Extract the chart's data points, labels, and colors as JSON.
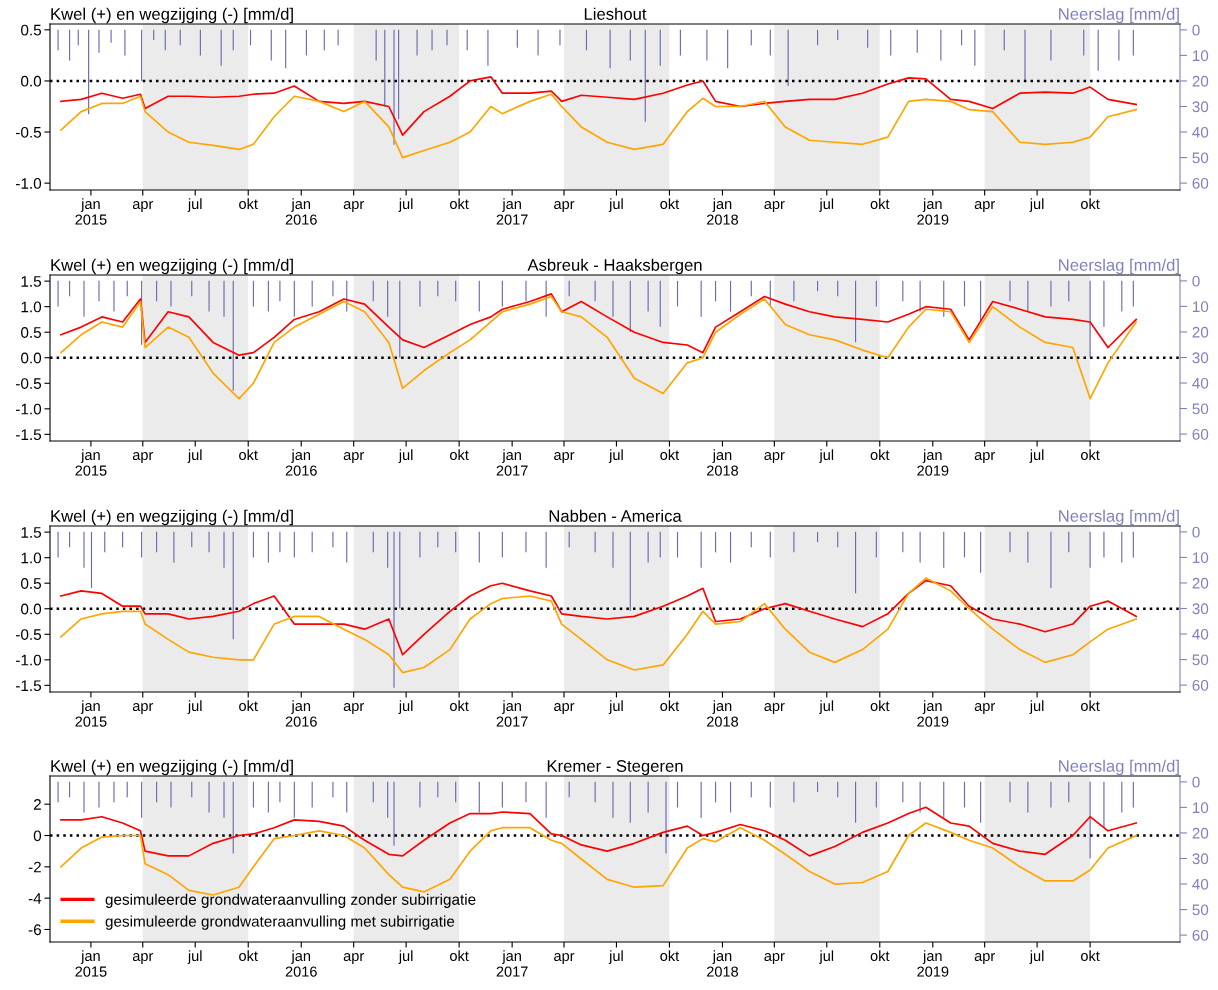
{
  "chart_data": [
    {
      "type": "line",
      "title": "Lieshout",
      "ylabel": "Kwel (+) en wegzijging (-) [mm/d]",
      "y2label": "Neerslag [mm/d]",
      "xlim": [
        "2014-10-22",
        "2020-03-05"
      ],
      "ylim": [
        -1.067,
        0.557
      ],
      "yticks": [
        {
          "value": -1.0,
          "label": "-1.0"
        },
        {
          "value": -0.5,
          "label": "-0.5"
        },
        {
          "value": 0.0,
          "label": "0.0"
        },
        {
          "value": 0.5,
          "label": "0.5"
        }
      ],
      "y2lim": [
        62.7,
        -2.3
      ],
      "y2ticks": [
        0,
        10,
        20,
        30,
        40,
        50,
        60
      ],
      "xticks": [
        {
          "value": "2015-01-01",
          "label": "jan\n2015"
        },
        {
          "value": "2015-04-01",
          "label": "apr"
        },
        {
          "value": "2015-07-01",
          "label": "jul"
        },
        {
          "value": "2015-10-01",
          "label": "okt"
        },
        {
          "value": "2016-01-01",
          "label": "jan\n2016"
        },
        {
          "value": "2016-04-01",
          "label": "apr"
        },
        {
          "value": "2016-07-01",
          "label": "jul"
        },
        {
          "value": "2016-10-01",
          "label": "okt"
        },
        {
          "value": "2017-01-01",
          "label": "jan\n2017"
        },
        {
          "value": "2017-04-01",
          "label": "apr"
        },
        {
          "value": "2017-07-01",
          "label": "jul"
        },
        {
          "value": "2017-10-01",
          "label": "okt"
        },
        {
          "value": "2018-01-01",
          "label": "jan\n2018"
        },
        {
          "value": "2018-04-01",
          "label": "apr"
        },
        {
          "value": "2018-07-01",
          "label": "jul"
        },
        {
          "value": "2018-10-01",
          "label": "okt"
        },
        {
          "value": "2019-01-01",
          "label": "jan\n2019"
        },
        {
          "value": "2019-04-01",
          "label": "apr"
        },
        {
          "value": "2019-07-01",
          "label": "jul"
        },
        {
          "value": "2019-10-01",
          "label": "okt"
        }
      ],
      "bands": [
        {
          "axis": "x",
          "from": "2015-04-01",
          "to": "2015-10-01",
          "color": "#ebebeb"
        },
        {
          "axis": "x",
          "from": "2016-04-01",
          "to": "2016-10-01",
          "color": "#ebebeb"
        },
        {
          "axis": "x",
          "from": "2017-04-01",
          "to": "2017-10-01",
          "color": "#ebebeb"
        },
        {
          "axis": "x",
          "from": "2018-04-01",
          "to": "2018-10-01",
          "color": "#ebebeb"
        },
        {
          "axis": "x",
          "from": "2019-04-01",
          "to": "2019-10-01",
          "color": "#ebebeb"
        }
      ],
      "ref_lines": [
        {
          "axis": "y",
          "value": 0,
          "color": "#000000",
          "line_style": "dotted"
        }
      ],
      "x": [
        "2014-11-10",
        "2014-12-15",
        "2015-01-20",
        "2015-02-25",
        "2015-03-28",
        "2015-04-05",
        "2015-05-15",
        "2015-06-20",
        "2015-08-01",
        "2015-09-15",
        "2015-10-10",
        "2015-11-15",
        "2015-12-20",
        "2016-02-01",
        "2016-03-15",
        "2016-04-20",
        "2016-06-01",
        "2016-06-25",
        "2016-08-01",
        "2016-09-15",
        "2016-10-20",
        "2016-11-25",
        "2016-12-15",
        "2017-02-01",
        "2017-03-10",
        "2017-03-28",
        "2017-05-01",
        "2017-06-15",
        "2017-08-01",
        "2017-09-20",
        "2017-11-01",
        "2017-11-28",
        "2017-12-20",
        "2018-02-01",
        "2018-03-15",
        "2018-04-20",
        "2018-06-01",
        "2018-07-15",
        "2018-09-01",
        "2018-10-15",
        "2018-11-20",
        "2018-12-20",
        "2019-02-01",
        "2019-03-05",
        "2019-04-15",
        "2019-06-01",
        "2019-07-15",
        "2019-09-01",
        "2019-10-01",
        "2019-11-01",
        "2019-12-20"
      ],
      "series": [
        {
          "type": "bar",
          "axis": "y2",
          "color": "#6b6bb0",
          "x": [
            "2014-11-05",
            "2014-11-25",
            "2014-12-10",
            "2014-12-28",
            "2015-01-15",
            "2015-02-05",
            "2015-03-01",
            "2015-03-30",
            "2015-04-20",
            "2015-05-10",
            "2015-06-05",
            "2015-07-10",
            "2015-08-15",
            "2015-09-05",
            "2015-10-05",
            "2015-11-10",
            "2015-12-05",
            "2016-01-10",
            "2016-02-10",
            "2016-03-05",
            "2016-05-10",
            "2016-05-25",
            "2016-06-10",
            "2016-06-18",
            "2016-07-20",
            "2016-08-15",
            "2016-09-10",
            "2016-10-15",
            "2016-11-20",
            "2017-01-10",
            "2017-02-15",
            "2017-03-25",
            "2017-05-10",
            "2017-06-20",
            "2017-07-25",
            "2017-08-20",
            "2017-09-15",
            "2017-10-20",
            "2017-12-05",
            "2018-01-10",
            "2018-02-20",
            "2018-03-25",
            "2018-04-25",
            "2018-06-15",
            "2018-07-20",
            "2018-09-10",
            "2018-10-20",
            "2018-12-05",
            "2019-01-15",
            "2019-02-20",
            "2019-03-15",
            "2019-05-05",
            "2019-06-10",
            "2019-07-25",
            "2019-09-20",
            "2019-10-15",
            "2019-11-20",
            "2019-12-15"
          ],
          "values": [
            8,
            12,
            6,
            33,
            9,
            5,
            10,
            20,
            4,
            8,
            6,
            10,
            14,
            8,
            6,
            12,
            15,
            10,
            8,
            6,
            12,
            30,
            45,
            35,
            10,
            8,
            6,
            8,
            14,
            7,
            10,
            6,
            8,
            15,
            12,
            36,
            14,
            10,
            12,
            15,
            6,
            10,
            22,
            6,
            4,
            7,
            10,
            9,
            12,
            6,
            14,
            8,
            20,
            12,
            10,
            16,
            12,
            10
          ]
        },
        {
          "color": "#ff0000",
          "values": [
            -0.2,
            -0.18,
            -0.12,
            -0.17,
            -0.13,
            -0.27,
            -0.15,
            -0.15,
            -0.16,
            -0.15,
            -0.13,
            -0.12,
            -0.05,
            -0.2,
            -0.22,
            -0.2,
            -0.25,
            -0.53,
            -0.3,
            -0.15,
            0.0,
            0.04,
            -0.12,
            -0.12,
            -0.1,
            -0.2,
            -0.14,
            -0.16,
            -0.18,
            -0.12,
            -0.04,
            0.0,
            -0.2,
            -0.25,
            -0.22,
            -0.2,
            -0.18,
            -0.18,
            -0.12,
            -0.03,
            0.03,
            0.02,
            -0.18,
            -0.2,
            -0.27,
            -0.12,
            -0.11,
            -0.12,
            -0.06,
            -0.18,
            -0.23
          ]
        },
        {
          "color": "#ffa500",
          "values": [
            -0.48,
            -0.3,
            -0.22,
            -0.22,
            -0.15,
            -0.3,
            -0.5,
            -0.6,
            -0.63,
            -0.67,
            -0.62,
            -0.35,
            -0.15,
            -0.2,
            -0.3,
            -0.2,
            -0.45,
            -0.75,
            -0.68,
            -0.6,
            -0.5,
            -0.25,
            -0.32,
            -0.2,
            -0.13,
            -0.25,
            -0.45,
            -0.6,
            -0.67,
            -0.62,
            -0.3,
            -0.17,
            -0.25,
            -0.25,
            -0.2,
            -0.45,
            -0.58,
            -0.6,
            -0.62,
            -0.55,
            -0.2,
            -0.18,
            -0.2,
            -0.28,
            -0.3,
            -0.6,
            -0.62,
            -0.6,
            -0.55,
            -0.35,
            -0.28
          ]
        }
      ]
    },
    {
      "type": "line",
      "title": "Asbreuk - Haaksbergen",
      "ylabel": "Kwel (+) en wegzijging (-) [mm/d]",
      "y2label": "Neerslag [mm/d]",
      "xlim": [
        "2014-10-22",
        "2020-03-05"
      ],
      "ylim": [
        -1.63,
        1.62
      ],
      "yticks": [
        {
          "value": -1.5,
          "label": "-1.5"
        },
        {
          "value": -1.0,
          "label": "-1.0"
        },
        {
          "value": -0.5,
          "label": "-0.5"
        },
        {
          "value": 0.0,
          "label": "0.0"
        },
        {
          "value": 0.5,
          "label": "0.5"
        },
        {
          "value": 1.0,
          "label": "1.0"
        },
        {
          "value": 1.5,
          "label": "1.5"
        }
      ],
      "y2lim": [
        62.7,
        -2.3
      ],
      "y2ticks": [
        0,
        10,
        20,
        30,
        40,
        50,
        60
      ],
      "xticks": [
        {
          "value": "2015-01-01",
          "label": "jan\n2015"
        },
        {
          "value": "2015-04-01",
          "label": "apr"
        },
        {
          "value": "2015-07-01",
          "label": "jul"
        },
        {
          "value": "2015-10-01",
          "label": "okt"
        },
        {
          "value": "2016-01-01",
          "label": "jan\n2016"
        },
        {
          "value": "2016-04-01",
          "label": "apr"
        },
        {
          "value": "2016-07-01",
          "label": "jul"
        },
        {
          "value": "2016-10-01",
          "label": "okt"
        },
        {
          "value": "2017-01-01",
          "label": "jan\n2017"
        },
        {
          "value": "2017-04-01",
          "label": "apr"
        },
        {
          "value": "2017-07-01",
          "label": "jul"
        },
        {
          "value": "2017-10-01",
          "label": "okt"
        },
        {
          "value": "2018-01-01",
          "label": "jan\n2018"
        },
        {
          "value": "2018-04-01",
          "label": "apr"
        },
        {
          "value": "2018-07-01",
          "label": "jul"
        },
        {
          "value": "2018-10-01",
          "label": "okt"
        },
        {
          "value": "2019-01-01",
          "label": "jan\n2019"
        },
        {
          "value": "2019-04-01",
          "label": "apr"
        },
        {
          "value": "2019-07-01",
          "label": "jul"
        },
        {
          "value": "2019-10-01",
          "label": "okt"
        }
      ],
      "bands": [
        {
          "axis": "x",
          "from": "2015-04-01",
          "to": "2015-10-01",
          "color": "#ebebeb"
        },
        {
          "axis": "x",
          "from": "2016-04-01",
          "to": "2016-10-01",
          "color": "#ebebeb"
        },
        {
          "axis": "x",
          "from": "2017-04-01",
          "to": "2017-10-01",
          "color": "#ebebeb"
        },
        {
          "axis": "x",
          "from": "2018-04-01",
          "to": "2018-10-01",
          "color": "#ebebeb"
        },
        {
          "axis": "x",
          "from": "2019-04-01",
          "to": "2019-10-01",
          "color": "#ebebeb"
        }
      ],
      "ref_lines": [
        {
          "axis": "y",
          "value": 0,
          "color": "#000000",
          "line_style": "dotted"
        }
      ],
      "x": [
        "2014-11-10",
        "2014-12-15",
        "2015-01-20",
        "2015-02-25",
        "2015-03-28",
        "2015-04-05",
        "2015-05-15",
        "2015-06-20",
        "2015-08-01",
        "2015-09-15",
        "2015-10-10",
        "2015-11-15",
        "2015-12-20",
        "2016-02-01",
        "2016-03-15",
        "2016-04-20",
        "2016-06-01",
        "2016-06-25",
        "2016-08-01",
        "2016-09-15",
        "2016-10-20",
        "2016-11-25",
        "2016-12-15",
        "2017-02-01",
        "2017-03-10",
        "2017-03-28",
        "2017-05-01",
        "2017-06-15",
        "2017-08-01",
        "2017-09-20",
        "2017-11-01",
        "2017-11-28",
        "2017-12-20",
        "2018-02-01",
        "2018-03-15",
        "2018-04-20",
        "2018-06-01",
        "2018-07-15",
        "2018-09-01",
        "2018-10-15",
        "2018-11-20",
        "2018-12-20",
        "2019-02-01",
        "2019-03-05",
        "2019-04-15",
        "2019-06-01",
        "2019-07-15",
        "2019-09-01",
        "2019-10-01",
        "2019-11-01",
        "2019-12-20"
      ],
      "series": [
        {
          "type": "bar",
          "axis": "y2",
          "color": "#6b6bb0",
          "x": [
            "2014-11-05",
            "2014-11-25",
            "2014-12-20",
            "2015-01-15",
            "2015-02-10",
            "2015-03-05",
            "2015-03-30",
            "2015-04-25",
            "2015-05-20",
            "2015-06-25",
            "2015-07-25",
            "2015-08-20",
            "2015-09-05",
            "2015-10-10",
            "2015-11-05",
            "2015-11-25",
            "2015-12-20",
            "2016-01-20",
            "2016-02-25",
            "2016-03-20",
            "2016-05-05",
            "2016-05-30",
            "2016-06-20",
            "2016-07-25",
            "2016-08-25",
            "2016-09-25",
            "2016-11-05",
            "2016-12-15",
            "2017-01-25",
            "2017-03-01",
            "2017-04-10",
            "2017-05-25",
            "2017-06-25",
            "2017-07-25",
            "2017-08-25",
            "2017-09-15",
            "2017-10-15",
            "2017-11-25",
            "2017-12-20",
            "2018-01-15",
            "2018-02-20",
            "2018-03-25",
            "2018-05-05",
            "2018-06-15",
            "2018-07-20",
            "2018-08-20",
            "2018-09-25",
            "2018-11-10",
            "2018-12-10",
            "2019-01-20",
            "2019-02-25",
            "2019-03-25",
            "2019-05-15",
            "2019-06-15",
            "2019-07-25",
            "2019-08-25",
            "2019-10-01",
            "2019-10-25",
            "2019-11-25",
            "2019-12-15"
          ],
          "values": [
            10,
            6,
            14,
            8,
            12,
            6,
            25,
            8,
            10,
            6,
            12,
            14,
            43,
            10,
            12,
            8,
            14,
            10,
            6,
            12,
            8,
            14,
            30,
            10,
            6,
            8,
            12,
            10,
            8,
            14,
            6,
            8,
            14,
            20,
            12,
            18,
            10,
            14,
            8,
            12,
            6,
            10,
            8,
            4,
            6,
            24,
            10,
            8,
            12,
            14,
            10,
            16,
            8,
            12,
            10,
            8,
            30,
            18,
            12,
            10
          ]
        },
        {
          "color": "#ff0000",
          "values": [
            0.45,
            0.6,
            0.8,
            0.7,
            1.15,
            0.3,
            0.9,
            0.8,
            0.3,
            0.05,
            0.1,
            0.4,
            0.75,
            0.9,
            1.15,
            1.05,
            0.6,
            0.35,
            0.2,
            0.45,
            0.65,
            0.8,
            0.95,
            1.1,
            1.25,
            0.9,
            1.1,
            0.8,
            0.5,
            0.3,
            0.25,
            0.1,
            0.6,
            0.9,
            1.2,
            1.05,
            0.9,
            0.8,
            0.75,
            0.7,
            0.85,
            1.0,
            0.95,
            0.35,
            1.1,
            0.95,
            0.8,
            0.75,
            0.7,
            0.2,
            0.75
          ]
        },
        {
          "color": "#ffa500",
          "values": [
            0.1,
            0.45,
            0.7,
            0.6,
            1.1,
            0.2,
            0.6,
            0.4,
            -0.3,
            -0.8,
            -0.5,
            0.3,
            0.6,
            0.85,
            1.1,
            0.9,
            0.3,
            -0.6,
            -0.25,
            0.1,
            0.35,
            0.7,
            0.9,
            1.05,
            1.2,
            0.9,
            0.8,
            0.4,
            -0.4,
            -0.7,
            -0.1,
            0.0,
            0.5,
            0.85,
            1.15,
            0.65,
            0.45,
            0.35,
            0.15,
            0.0,
            0.6,
            0.95,
            0.9,
            0.3,
            1.0,
            0.6,
            0.3,
            0.2,
            -0.8,
            -0.1,
            0.7
          ]
        }
      ]
    },
    {
      "type": "line",
      "title": "Nabben - America",
      "ylabel": "Kwel (+) en wegzijging (-) [mm/d]",
      "y2label": "Neerslag [mm/d]",
      "xlim": [
        "2014-10-22",
        "2020-03-05"
      ],
      "ylim": [
        -1.63,
        1.62
      ],
      "yticks": [
        {
          "value": -1.5,
          "label": "-1.5"
        },
        {
          "value": -1.0,
          "label": "-1.0"
        },
        {
          "value": -0.5,
          "label": "-0.5"
        },
        {
          "value": 0.0,
          "label": "0.0"
        },
        {
          "value": 0.5,
          "label": "0.5"
        },
        {
          "value": 1.0,
          "label": "1.0"
        },
        {
          "value": 1.5,
          "label": "1.5"
        }
      ],
      "y2lim": [
        62.7,
        -2.3
      ],
      "y2ticks": [
        0,
        10,
        20,
        30,
        40,
        50,
        60
      ],
      "xticks": [
        {
          "value": "2015-01-01",
          "label": "jan\n2015"
        },
        {
          "value": "2015-04-01",
          "label": "apr"
        },
        {
          "value": "2015-07-01",
          "label": "jul"
        },
        {
          "value": "2015-10-01",
          "label": "okt"
        },
        {
          "value": "2016-01-01",
          "label": "jan\n2016"
        },
        {
          "value": "2016-04-01",
          "label": "apr"
        },
        {
          "value": "2016-07-01",
          "label": "jul"
        },
        {
          "value": "2016-10-01",
          "label": "okt"
        },
        {
          "value": "2017-01-01",
          "label": "jan\n2017"
        },
        {
          "value": "2017-04-01",
          "label": "apr"
        },
        {
          "value": "2017-07-01",
          "label": "jul"
        },
        {
          "value": "2017-10-01",
          "label": "okt"
        },
        {
          "value": "2018-01-01",
          "label": "jan\n2018"
        },
        {
          "value": "2018-04-01",
          "label": "apr"
        },
        {
          "value": "2018-07-01",
          "label": "jul"
        },
        {
          "value": "2018-10-01",
          "label": "okt"
        },
        {
          "value": "2019-01-01",
          "label": "jan\n2019"
        },
        {
          "value": "2019-04-01",
          "label": "apr"
        },
        {
          "value": "2019-07-01",
          "label": "jul"
        },
        {
          "value": "2019-10-01",
          "label": "okt"
        }
      ],
      "bands": [
        {
          "axis": "x",
          "from": "2015-04-01",
          "to": "2015-10-01",
          "color": "#ebebeb"
        },
        {
          "axis": "x",
          "from": "2016-04-01",
          "to": "2016-10-01",
          "color": "#ebebeb"
        },
        {
          "axis": "x",
          "from": "2017-04-01",
          "to": "2017-10-01",
          "color": "#ebebeb"
        },
        {
          "axis": "x",
          "from": "2018-04-01",
          "to": "2018-10-01",
          "color": "#ebebeb"
        },
        {
          "axis": "x",
          "from": "2019-04-01",
          "to": "2019-10-01",
          "color": "#ebebeb"
        }
      ],
      "ref_lines": [
        {
          "axis": "y",
          "value": 0,
          "color": "#000000",
          "line_style": "dotted"
        }
      ],
      "x": [
        "2014-11-10",
        "2014-12-15",
        "2015-01-20",
        "2015-02-25",
        "2015-03-28",
        "2015-04-05",
        "2015-05-15",
        "2015-06-20",
        "2015-08-01",
        "2015-09-15",
        "2015-10-10",
        "2015-11-15",
        "2015-12-20",
        "2016-02-01",
        "2016-03-15",
        "2016-04-20",
        "2016-06-01",
        "2016-06-25",
        "2016-08-01",
        "2016-09-15",
        "2016-10-20",
        "2016-11-25",
        "2016-12-15",
        "2017-02-01",
        "2017-03-10",
        "2017-03-28",
        "2017-05-01",
        "2017-06-15",
        "2017-08-01",
        "2017-09-20",
        "2017-11-01",
        "2017-11-28",
        "2017-12-20",
        "2018-02-01",
        "2018-03-15",
        "2018-04-20",
        "2018-06-01",
        "2018-07-15",
        "2018-09-01",
        "2018-10-15",
        "2018-11-20",
        "2018-12-20",
        "2019-02-01",
        "2019-03-05",
        "2019-04-15",
        "2019-06-01",
        "2019-07-15",
        "2019-09-01",
        "2019-10-01",
        "2019-11-01",
        "2019-12-20"
      ],
      "series": [
        {
          "type": "bar",
          "axis": "y2",
          "color": "#6b6bb0",
          "x": [
            "2014-11-05",
            "2014-11-25",
            "2014-12-20",
            "2015-01-02",
            "2015-01-25",
            "2015-02-25",
            "2015-03-30",
            "2015-04-25",
            "2015-05-25",
            "2015-06-25",
            "2015-07-25",
            "2015-08-20",
            "2015-09-05",
            "2015-10-10",
            "2015-11-05",
            "2015-11-25",
            "2015-12-20",
            "2016-01-20",
            "2016-02-25",
            "2016-03-20",
            "2016-05-05",
            "2016-05-30",
            "2016-06-10",
            "2016-06-20",
            "2016-07-25",
            "2016-08-25",
            "2016-09-25",
            "2016-11-05",
            "2016-12-15",
            "2017-01-25",
            "2017-03-01",
            "2017-04-10",
            "2017-05-25",
            "2017-06-25",
            "2017-07-25",
            "2017-08-25",
            "2017-09-15",
            "2017-10-15",
            "2017-11-25",
            "2017-12-20",
            "2018-01-15",
            "2018-02-20",
            "2018-03-25",
            "2018-05-05",
            "2018-06-15",
            "2018-07-20",
            "2018-08-20",
            "2018-09-25",
            "2018-11-10",
            "2018-12-10",
            "2019-01-20",
            "2019-02-25",
            "2019-03-25",
            "2019-05-15",
            "2019-06-15",
            "2019-07-25",
            "2019-08-25",
            "2019-10-01",
            "2019-10-25",
            "2019-11-25",
            "2019-12-15"
          ],
          "values": [
            10,
            6,
            14,
            22,
            8,
            6,
            10,
            8,
            12,
            6,
            8,
            14,
            42,
            10,
            12,
            8,
            10,
            8,
            6,
            12,
            8,
            14,
            61,
            30,
            10,
            6,
            8,
            12,
            10,
            8,
            14,
            6,
            8,
            14,
            31,
            12,
            10,
            10,
            14,
            8,
            12,
            6,
            10,
            8,
            4,
            6,
            24,
            10,
            8,
            12,
            14,
            10,
            16,
            8,
            12,
            22,
            8,
            14,
            10,
            12,
            10
          ]
        },
        {
          "color": "#ff0000",
          "values": [
            0.25,
            0.35,
            0.3,
            0.05,
            0.05,
            -0.1,
            -0.1,
            -0.2,
            -0.15,
            -0.05,
            0.1,
            0.25,
            -0.3,
            -0.3,
            -0.3,
            -0.4,
            -0.2,
            -0.9,
            -0.5,
            -0.05,
            0.25,
            0.45,
            0.5,
            0.35,
            0.25,
            -0.1,
            -0.15,
            -0.2,
            -0.15,
            0.05,
            0.25,
            0.4,
            -0.25,
            -0.2,
            0.0,
            0.1,
            -0.05,
            -0.2,
            -0.35,
            -0.1,
            0.3,
            0.55,
            0.45,
            0.05,
            -0.2,
            -0.3,
            -0.45,
            -0.3,
            0.05,
            0.15,
            -0.15
          ]
        },
        {
          "color": "#ffa500",
          "values": [
            -0.55,
            -0.2,
            -0.1,
            -0.05,
            -0.05,
            -0.3,
            -0.6,
            -0.85,
            -0.95,
            -1.0,
            -1.0,
            -0.3,
            -0.15,
            -0.15,
            -0.4,
            -0.6,
            -0.9,
            -1.25,
            -1.15,
            -0.8,
            -0.2,
            0.1,
            0.2,
            0.25,
            0.15,
            -0.3,
            -0.6,
            -1.0,
            -1.2,
            -1.1,
            -0.5,
            -0.05,
            -0.3,
            -0.25,
            0.1,
            -0.4,
            -0.85,
            -1.05,
            -0.8,
            -0.4,
            0.3,
            0.6,
            0.35,
            0.0,
            -0.4,
            -0.8,
            -1.05,
            -0.9,
            -0.65,
            -0.4,
            -0.2
          ]
        }
      ]
    },
    {
      "type": "line",
      "title": "Kremer - Stegeren",
      "ylabel": "Kwel (+) en wegzijging (-) [mm/d]",
      "y2label": "Neerslag [mm/d]",
      "legend": "bottom left",
      "xlim": [
        "2014-10-22",
        "2020-03-05"
      ],
      "ylim": [
        -6.8,
        3.8
      ],
      "yticks": [
        -6,
        -4,
        -2,
        0,
        2
      ],
      "y2lim": [
        62.7,
        -2.3
      ],
      "y2ticks": [
        0,
        10,
        20,
        30,
        40,
        50,
        60
      ],
      "xticks": [
        {
          "value": "2015-01-01",
          "label": "jan\n2015"
        },
        {
          "value": "2015-04-01",
          "label": "apr"
        },
        {
          "value": "2015-07-01",
          "label": "jul"
        },
        {
          "value": "2015-10-01",
          "label": "okt"
        },
        {
          "value": "2016-01-01",
          "label": "jan\n2016"
        },
        {
          "value": "2016-04-01",
          "label": "apr"
        },
        {
          "value": "2016-07-01",
          "label": "jul"
        },
        {
          "value": "2016-10-01",
          "label": "okt"
        },
        {
          "value": "2017-01-01",
          "label": "jan\n2017"
        },
        {
          "value": "2017-04-01",
          "label": "apr"
        },
        {
          "value": "2017-07-01",
          "label": "jul"
        },
        {
          "value": "2017-10-01",
          "label": "okt"
        },
        {
          "value": "2018-01-01",
          "label": "jan\n2018"
        },
        {
          "value": "2018-04-01",
          "label": "apr"
        },
        {
          "value": "2018-07-01",
          "label": "jul"
        },
        {
          "value": "2018-10-01",
          "label": "okt"
        },
        {
          "value": "2019-01-01",
          "label": "jan\n2019"
        },
        {
          "value": "2019-04-01",
          "label": "apr"
        },
        {
          "value": "2019-07-01",
          "label": "jul"
        },
        {
          "value": "2019-10-01",
          "label": "okt"
        }
      ],
      "bands": [
        {
          "axis": "x",
          "from": "2015-04-01",
          "to": "2015-10-01",
          "color": "#ebebeb"
        },
        {
          "axis": "x",
          "from": "2016-04-01",
          "to": "2016-10-01",
          "color": "#ebebeb"
        },
        {
          "axis": "x",
          "from": "2017-04-01",
          "to": "2017-10-01",
          "color": "#ebebeb"
        },
        {
          "axis": "x",
          "from": "2018-04-01",
          "to": "2018-10-01",
          "color": "#ebebeb"
        },
        {
          "axis": "x",
          "from": "2019-04-01",
          "to": "2019-10-01",
          "color": "#ebebeb"
        }
      ],
      "ref_lines": [
        {
          "axis": "y",
          "value": 0,
          "color": "#000000",
          "line_style": "dotted"
        }
      ],
      "x": [
        "2014-11-10",
        "2014-12-15",
        "2015-01-20",
        "2015-02-25",
        "2015-03-28",
        "2015-04-05",
        "2015-05-15",
        "2015-06-20",
        "2015-08-01",
        "2015-09-15",
        "2015-10-10",
        "2015-11-15",
        "2015-12-20",
        "2016-02-01",
        "2016-03-15",
        "2016-04-20",
        "2016-06-01",
        "2016-06-25",
        "2016-08-01",
        "2016-09-15",
        "2016-10-20",
        "2016-11-25",
        "2016-12-15",
        "2017-02-01",
        "2017-03-10",
        "2017-03-28",
        "2017-05-01",
        "2017-06-15",
        "2017-08-01",
        "2017-09-20",
        "2017-11-01",
        "2017-11-28",
        "2017-12-20",
        "2018-02-01",
        "2018-03-15",
        "2018-04-20",
        "2018-06-01",
        "2018-07-15",
        "2018-09-01",
        "2018-10-15",
        "2018-11-20",
        "2018-12-20",
        "2019-02-01",
        "2019-03-05",
        "2019-04-15",
        "2019-06-01",
        "2019-07-15",
        "2019-09-01",
        "2019-10-01",
        "2019-11-01",
        "2019-12-20"
      ],
      "series": [
        {
          "type": "bar",
          "axis": "y2",
          "color": "#6b6bb0",
          "x": [
            "2014-11-05",
            "2014-11-25",
            "2014-12-20",
            "2015-01-15",
            "2015-02-10",
            "2015-03-05",
            "2015-03-30",
            "2015-04-25",
            "2015-05-20",
            "2015-06-25",
            "2015-07-25",
            "2015-08-20",
            "2015-09-05",
            "2015-10-10",
            "2015-11-05",
            "2015-11-25",
            "2015-12-20",
            "2016-01-20",
            "2016-02-25",
            "2016-03-20",
            "2016-05-05",
            "2016-05-30",
            "2016-06-10",
            "2016-07-25",
            "2016-08-25",
            "2016-09-25",
            "2016-11-05",
            "2016-12-15",
            "2017-01-25",
            "2017-03-01",
            "2017-04-10",
            "2017-05-25",
            "2017-06-25",
            "2017-07-25",
            "2017-08-25",
            "2017-09-25",
            "2017-10-15",
            "2017-11-25",
            "2017-12-20",
            "2018-01-15",
            "2018-02-20",
            "2018-03-25",
            "2018-05-05",
            "2018-06-15",
            "2018-07-20",
            "2018-08-20",
            "2018-09-25",
            "2018-11-10",
            "2018-12-10",
            "2019-01-20",
            "2019-02-25",
            "2019-03-25",
            "2019-05-15",
            "2019-06-15",
            "2019-07-25",
            "2019-08-25",
            "2019-10-01",
            "2019-10-25",
            "2019-11-25",
            "2019-12-15"
          ],
          "values": [
            8,
            6,
            12,
            10,
            8,
            6,
            14,
            8,
            10,
            6,
            12,
            14,
            28,
            10,
            12,
            8,
            14,
            10,
            6,
            12,
            8,
            14,
            25,
            10,
            6,
            8,
            12,
            10,
            8,
            14,
            6,
            8,
            14,
            16,
            12,
            28,
            10,
            14,
            8,
            12,
            6,
            10,
            8,
            4,
            6,
            16,
            10,
            8,
            12,
            14,
            10,
            16,
            8,
            12,
            10,
            8,
            30,
            18,
            12,
            10
          ]
        },
        {
          "name": "gesimuleerde grondwateraanvulling zonder subirrigatie",
          "color": "#ff0000",
          "values": [
            1.0,
            1.0,
            1.2,
            0.8,
            0.3,
            -1.0,
            -1.3,
            -1.3,
            -0.5,
            0.0,
            0.1,
            0.5,
            1.0,
            0.9,
            0.6,
            -0.3,
            -1.2,
            -1.3,
            -0.3,
            0.8,
            1.4,
            1.4,
            1.5,
            1.4,
            0.1,
            0.0,
            -0.6,
            -1.0,
            -0.5,
            0.2,
            0.6,
            0.0,
            0.2,
            0.7,
            0.3,
            -0.3,
            -1.3,
            -0.7,
            0.2,
            0.8,
            1.4,
            1.8,
            0.8,
            0.6,
            -0.5,
            -1.0,
            -1.2,
            0.0,
            1.2,
            0.3,
            0.8
          ]
        },
        {
          "name": "gesimuleerde grondwateraanvulling met subirrigatie",
          "color": "#ffa500",
          "values": [
            -2.0,
            -0.8,
            -0.1,
            0.0,
            0.0,
            -1.8,
            -2.5,
            -3.5,
            -3.8,
            -3.3,
            -2.0,
            -0.2,
            0.0,
            0.3,
            0.0,
            -0.8,
            -2.5,
            -3.3,
            -3.6,
            -2.8,
            -1.0,
            0.3,
            0.5,
            0.5,
            -0.3,
            -0.5,
            -1.5,
            -2.8,
            -3.3,
            -3.2,
            -0.8,
            -0.2,
            -0.4,
            0.5,
            -0.3,
            -1.2,
            -2.3,
            -3.1,
            -3.0,
            -2.3,
            0.0,
            0.8,
            0.2,
            -0.3,
            -0.8,
            -2.0,
            -2.9,
            -2.9,
            -2.2,
            -0.8,
            0.0
          ]
        }
      ]
    }
  ]
}
